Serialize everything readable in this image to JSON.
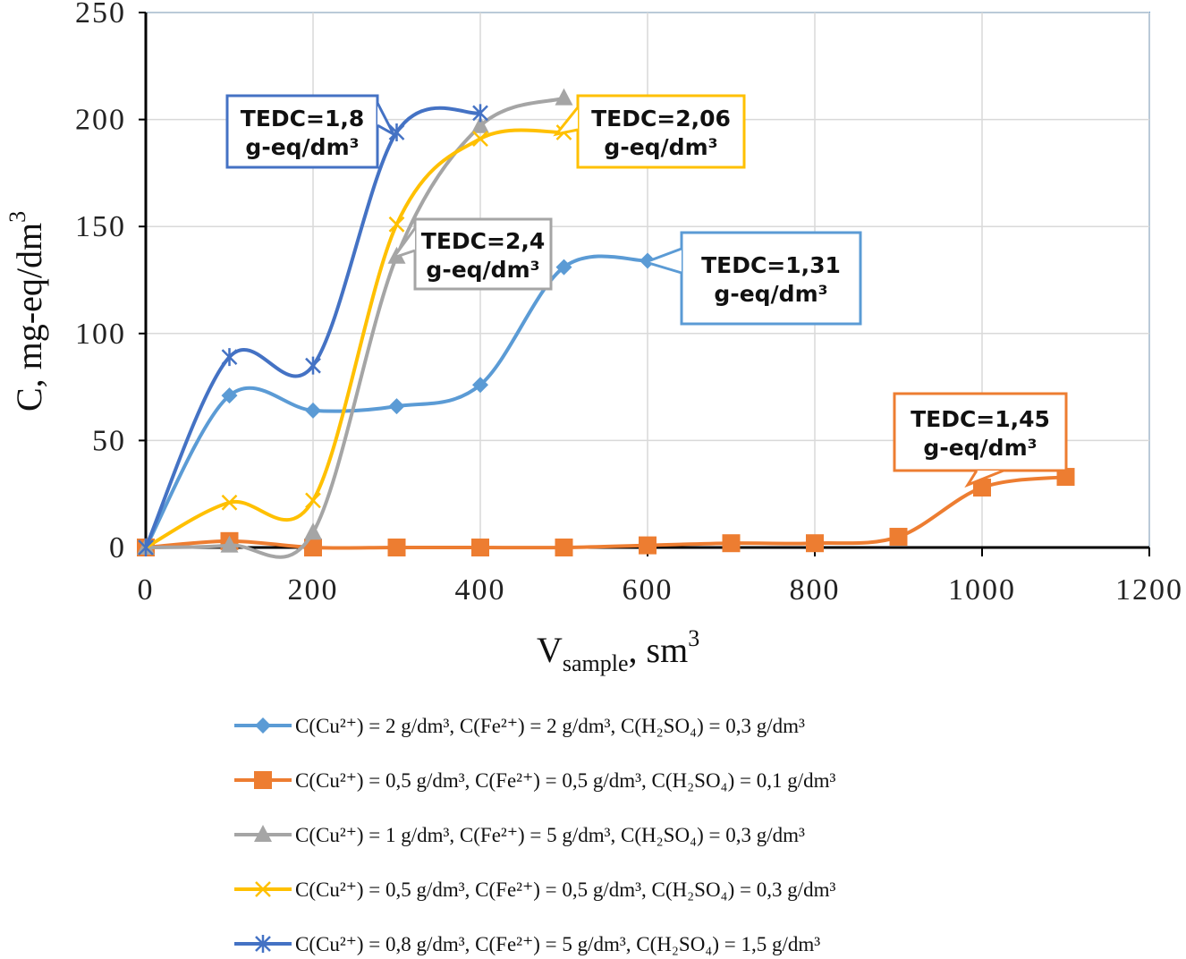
{
  "chart_data": {
    "type": "line",
    "title": "",
    "xlabel": "V",
    "xlabel_sub": "sample",
    "xlabel_unit": "sm",
    "xlabel_sup": "3",
    "ylabel": "C, mg-eq/dm",
    "ylabel_sup": "3",
    "xlim": [
      0,
      1200
    ],
    "ylim": [
      0,
      250
    ],
    "xticks": [
      0,
      200,
      400,
      600,
      800,
      1000,
      1200
    ],
    "yticks": [
      0,
      50,
      100,
      150,
      200,
      250
    ],
    "grid": true,
    "series": [
      {
        "name": "C(Cu²⁺) = 2 g/dm³, C(Fe²⁺) = 2  g/dm³, C(H₂SO₄) = 0,3 g/dm³",
        "color": "#5B9BD5",
        "marker": "diamond",
        "x": [
          0,
          100,
          200,
          300,
          400,
          500,
          600
        ],
        "y": [
          0,
          71,
          64,
          66,
          76,
          131,
          134
        ]
      },
      {
        "name": "C(Cu²⁺) = 0,5 g/dm³, C(Fe²⁺) = 0,5  g/dm³, C(H₂SO₄) = 0,1  g/dm³",
        "color": "#ED7D31",
        "marker": "square",
        "x": [
          0,
          100,
          200,
          300,
          400,
          500,
          600,
          700,
          800,
          900,
          1000,
          1100
        ],
        "y": [
          0,
          3,
          0,
          0,
          0,
          0,
          1,
          2,
          2,
          5,
          28,
          33
        ]
      },
      {
        "name": "C(Cu²⁺) = 1  g/dm³, C(Fe²⁺) = 5  g/dm³, C(H₂SO₄) = 0,3  g/dm³",
        "color": "#A5A5A5",
        "marker": "triangle",
        "x": [
          0,
          100,
          200,
          300,
          400,
          500
        ],
        "y": [
          0,
          1,
          7,
          136,
          197,
          210
        ]
      },
      {
        "name": "C(Cu²⁺) = 0,5  g/dm³, C(Fe²⁺) = 0,5  g/dm³, C(H₂SO₄) = 0,3  g/dm³",
        "color": "#FFC000",
        "marker": "x",
        "x": [
          0,
          100,
          200,
          300,
          400,
          500
        ],
        "y": [
          0,
          21,
          22,
          151,
          191,
          194
        ]
      },
      {
        "name": "C(Cu²⁺) = 0,8  g/dm³, C(Fe²⁺) = 5  g/dm³, C(H₂SO₄) = 1,5  g/dm³",
        "color": "#4472C4",
        "marker": "star",
        "x": [
          0,
          100,
          200,
          300,
          400
        ],
        "y": [
          0,
          89,
          85,
          194,
          203
        ]
      }
    ],
    "annotations": [
      {
        "line1": "TEDC=1,8",
        "line2": "g-eq/dm³",
        "color": "#4472C4"
      },
      {
        "line1": "TEDC=2,06",
        "line2": "g-eq/dm³",
        "color": "#FFC000"
      },
      {
        "line1": "TEDC=2,4",
        "line2": "g-eq/dm³",
        "color": "#A5A5A5"
      },
      {
        "line1": "TEDC=1,31",
        "line2": "g-eq/dm³",
        "color": "#5B9BD5"
      },
      {
        "line1": "TEDC=1,45",
        "line2": "g-eq/dm³",
        "color": "#ED7D31"
      }
    ]
  }
}
